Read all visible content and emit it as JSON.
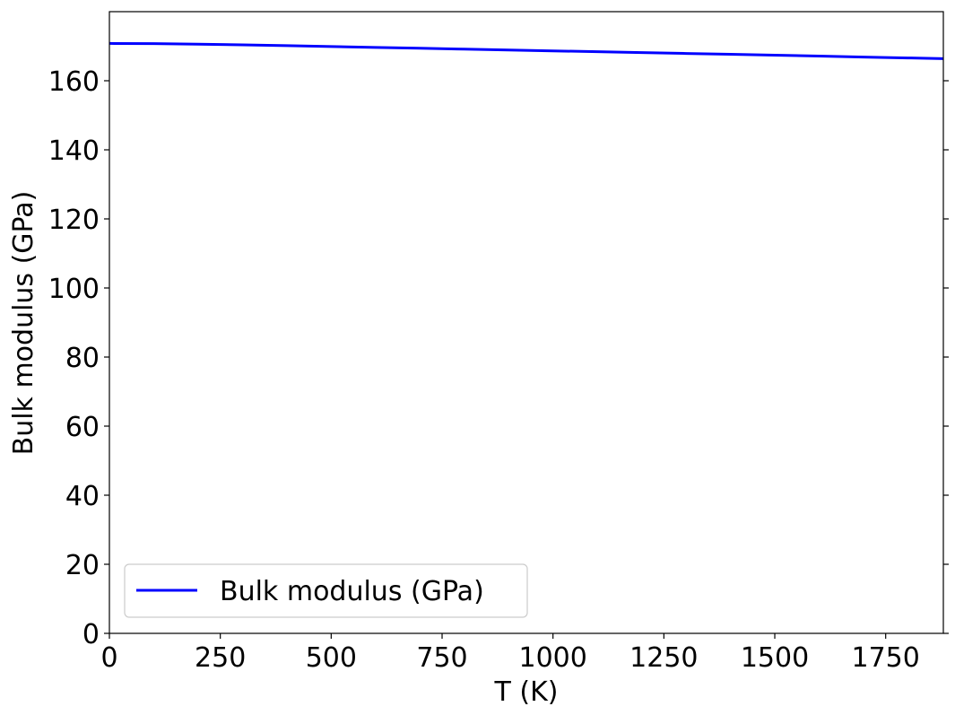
{
  "chart_data": {
    "type": "line",
    "xlabel": "T (K)",
    "ylabel": "Bulk modulus (GPa)",
    "xlim": [
      0,
      1880
    ],
    "ylim": [
      0,
      180
    ],
    "xticks": [
      0,
      250,
      500,
      750,
      1000,
      1250,
      1500,
      1750
    ],
    "yticks": [
      0,
      20,
      40,
      60,
      80,
      100,
      120,
      140,
      160
    ],
    "x_tick_labels": [
      "0",
      "250",
      "500",
      "750",
      "1000",
      "1250",
      "1500",
      "1750"
    ],
    "y_tick_labels": [
      "0",
      "20",
      "40",
      "60",
      "80",
      "100",
      "120",
      "140",
      "160"
    ],
    "grid": false,
    "legend_position": "lower-left",
    "series": [
      {
        "name": "Bulk modulus (GPa)",
        "color": "#0000ff",
        "x": [
          0,
          100,
          200,
          300,
          400,
          500,
          600,
          700,
          800,
          900,
          1000,
          1100,
          1200,
          1300,
          1400,
          1500,
          1600,
          1700,
          1800,
          1880
        ],
        "y": [
          170.8,
          170.75,
          170.6,
          170.4,
          170.15,
          169.9,
          169.65,
          169.4,
          169.15,
          168.9,
          168.65,
          168.4,
          168.15,
          167.9,
          167.65,
          167.4,
          167.15,
          166.85,
          166.6,
          166.4
        ]
      }
    ]
  }
}
